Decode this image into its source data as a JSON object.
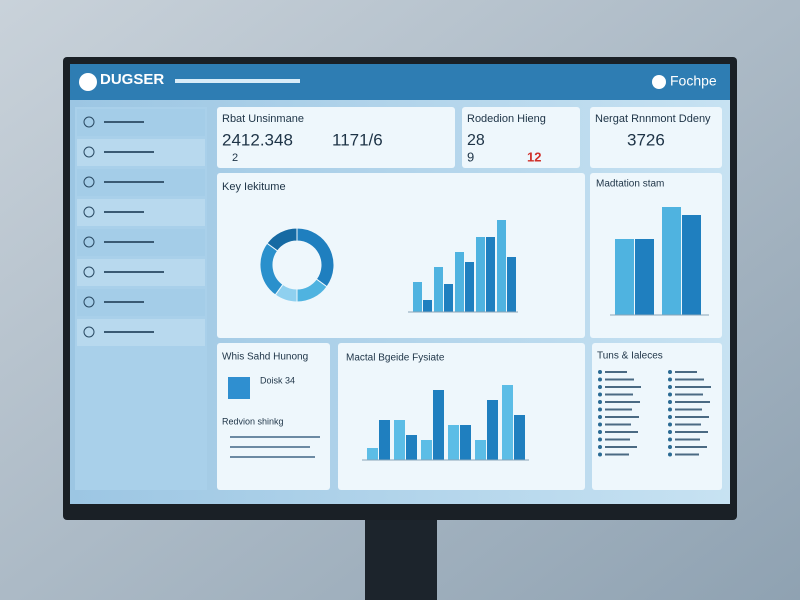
{
  "header": {
    "brand": "DUGSER",
    "right": "Fochpe"
  },
  "stats": [
    {
      "title": "Rbat Unsinmane",
      "values": [
        "2412.348",
        "1171/6"
      ],
      "sub": "2"
    },
    {
      "title": "Rodedion Hieng",
      "values": [
        "28",
        "9"
      ],
      "alert": "12"
    },
    {
      "title": "Nergat Rnnmont Ddeny",
      "values": [
        "3726"
      ]
    }
  ],
  "key_chart": {
    "title": "Key Iekitume",
    "donut": [
      35,
      15,
      10,
      25,
      15
    ],
    "series": [
      {
        "color": "#4fb3e0",
        "values": [
          30,
          45,
          60,
          75,
          92
        ]
      },
      {
        "color": "#1f7fbf",
        "values": [
          12,
          28,
          50,
          75,
          55
        ]
      }
    ]
  },
  "side_chart": {
    "title": "Madtation stam",
    "series": [
      {
        "color": "#4fb3e0",
        "values": [
          76,
          108
        ]
      },
      {
        "color": "#1f7fbf",
        "values": [
          76,
          100
        ]
      }
    ]
  },
  "small_card": {
    "title": "Whis Sahd Hunong",
    "label": "Doisk 34",
    "sub": "Redvion shinkg"
  },
  "mid_chart": {
    "title": "Mactal Bgeide Fysiate",
    "series": [
      {
        "color": "#5cbde6",
        "values": [
          12,
          40,
          20,
          35,
          20,
          75
        ]
      },
      {
        "color": "#1f7fbf",
        "values": [
          40,
          25,
          70,
          35,
          60,
          45
        ]
      }
    ]
  },
  "list_card": {
    "title": "Tuns & Ialeces"
  }
}
